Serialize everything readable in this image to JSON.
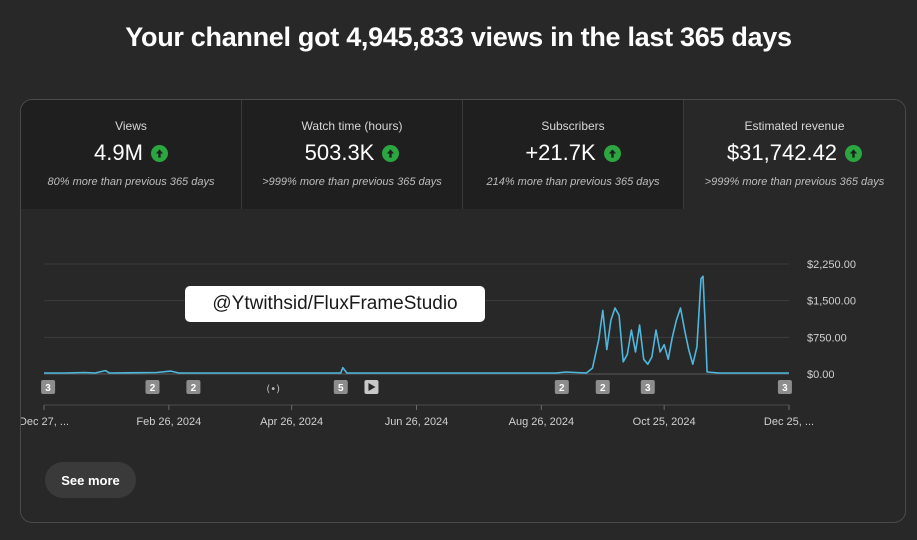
{
  "headline": "Your channel got 4,945,833 views in the last 365 days",
  "metrics": [
    {
      "label": "Views",
      "value": "4.9M",
      "note": "80% more than previous 365 days"
    },
    {
      "label": "Watch time (hours)",
      "value": "503.3K",
      "note": ">999% more than previous 365 days"
    },
    {
      "label": "Subscribers",
      "value": "+21.7K",
      "note": "214% more than previous 365 days"
    },
    {
      "label": "Estimated revenue",
      "value": "$31,742.42",
      "note": ">999% more than previous 365 days"
    }
  ],
  "watermark": "@Ytwithsid/FluxFrameStudio",
  "see_more_label": "See more",
  "colors": {
    "line": "#4fb6dc",
    "up": "#2ba640"
  },
  "chart_data": {
    "type": "line",
    "title": "",
    "xlabel": "",
    "ylabel": "",
    "ylim": [
      0,
      2250
    ],
    "y_ticks": [
      "$2,250.00",
      "$1,500.00",
      "$750.00",
      "$0.00"
    ],
    "y_tick_values": [
      2250,
      1500,
      750,
      0
    ],
    "x_ticks": [
      "Dec 27, ...",
      "Feb 26, 2024",
      "Apr 26, 2024",
      "Jun 26, 2024",
      "Aug 26, 2024",
      "Oct 25, 2024",
      "Dec 25, ..."
    ],
    "x_tick_days": [
      0,
      61,
      121,
      182,
      243,
      303,
      364
    ],
    "grid": true,
    "series": [
      {
        "values": [
          [
            0,
            20
          ],
          [
            10,
            20
          ],
          [
            20,
            30
          ],
          [
            25,
            20
          ],
          [
            30,
            70
          ],
          [
            32,
            20
          ],
          [
            55,
            30
          ],
          [
            62,
            60
          ],
          [
            66,
            20
          ],
          [
            100,
            20
          ],
          [
            145,
            20
          ],
          [
            146,
            130
          ],
          [
            148,
            20
          ],
          [
            200,
            20
          ],
          [
            250,
            20
          ],
          [
            255,
            40
          ],
          [
            265,
            20
          ],
          [
            268,
            120
          ],
          [
            271,
            700
          ],
          [
            273,
            1300
          ],
          [
            275,
            500
          ],
          [
            277,
            1100
          ],
          [
            279,
            1350
          ],
          [
            281,
            1200
          ],
          [
            283,
            250
          ],
          [
            285,
            400
          ],
          [
            287,
            900
          ],
          [
            289,
            450
          ],
          [
            291,
            1000
          ],
          [
            293,
            300
          ],
          [
            295,
            200
          ],
          [
            297,
            350
          ],
          [
            299,
            900
          ],
          [
            301,
            450
          ],
          [
            303,
            600
          ],
          [
            305,
            300
          ],
          [
            307,
            750
          ],
          [
            309,
            1100
          ],
          [
            311,
            1350
          ],
          [
            313,
            900
          ],
          [
            315,
            500
          ],
          [
            317,
            200
          ],
          [
            319,
            550
          ],
          [
            321,
            1950
          ],
          [
            322,
            2000
          ],
          [
            323,
            1050
          ],
          [
            324,
            40
          ],
          [
            330,
            20
          ],
          [
            364,
            20
          ]
        ]
      }
    ],
    "annotations": [
      {
        "day": 2,
        "label": "3"
      },
      {
        "day": 53,
        "label": "2"
      },
      {
        "day": 73,
        "label": "2"
      },
      {
        "day": 112,
        "label": "live-icon"
      },
      {
        "day": 145,
        "label": "5"
      },
      {
        "day": 160,
        "label": "play-icon"
      },
      {
        "day": 253,
        "label": "2"
      },
      {
        "day": 273,
        "label": "2"
      },
      {
        "day": 295,
        "label": "3"
      },
      {
        "day": 362,
        "label": "3"
      }
    ]
  }
}
